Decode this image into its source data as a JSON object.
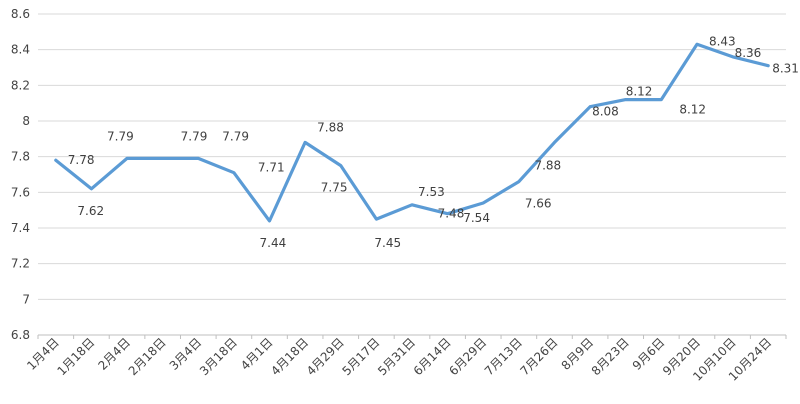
{
  "chart_data": {
    "type": "line",
    "title": "",
    "xlabel": "",
    "ylabel": "",
    "ylim": [
      6.8,
      8.6
    ],
    "yticks": [
      "6.8",
      "7",
      "7.2",
      "7.4",
      "7.6",
      "7.8",
      "8",
      "8.2",
      "8.4",
      "8.6"
    ],
    "grid": true,
    "legend": "none",
    "categories": [
      "1月4日",
      "1月18日",
      "2月4日",
      "2月18日",
      "3月4日",
      "3月18日",
      "4月1日",
      "4月18日",
      "4月29日",
      "5月17日",
      "5月31日",
      "6月14日",
      "6月29日",
      "7月13日",
      "7月26日",
      "8月9日",
      "8月23日",
      "9月6日",
      "9月20日",
      "10月10日",
      "10月24日"
    ],
    "series": [
      {
        "values": [
          7.78,
          7.62,
          7.79,
          7.79,
          7.79,
          7.71,
          7.44,
          7.88,
          7.75,
          7.45,
          7.53,
          7.48,
          7.54,
          7.66,
          7.88,
          8.08,
          8.12,
          8.12,
          8.43,
          8.36,
          8.31
        ],
        "labels": [
          "7.78",
          "7.62",
          "7.79",
          "7.79",
          "7.79",
          "7.71",
          "7.44",
          "7.88",
          "7.75",
          "7.45",
          "7.53",
          "7.48",
          "7.54",
          "7.66",
          "7.88",
          "8.08",
          "8.12",
          "8.12",
          "8.43",
          "8.36",
          "8.31"
        ],
        "color": "#5b9bd5"
      }
    ]
  }
}
